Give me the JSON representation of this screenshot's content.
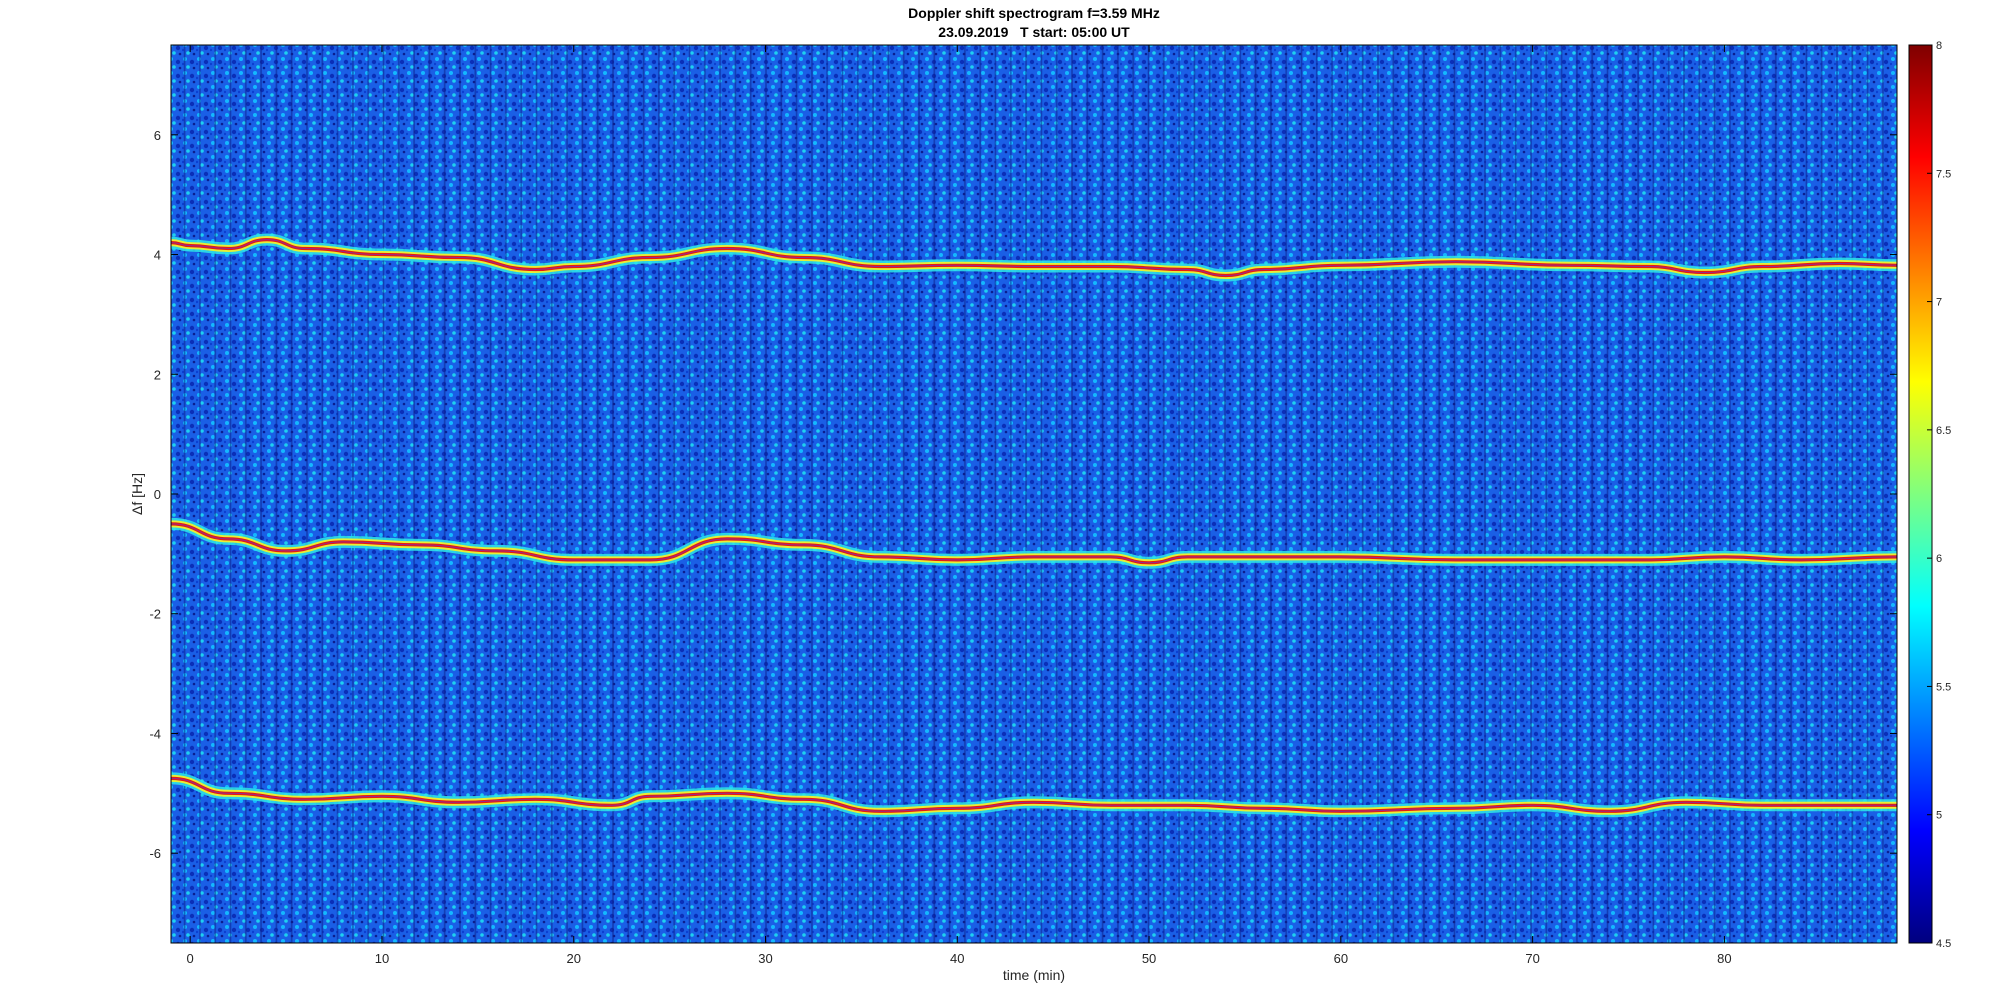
{
  "chart_data": {
    "type": "heatmap",
    "title": "Doppler shift spectrogram f=3.59 MHz",
    "subtitle": "23.09.2019   T start: 05:00 UT",
    "xlabel": "time (min)",
    "ylabel": "Δf [Hz]",
    "xlim": [
      -1,
      89
    ],
    "ylim": [
      -7.5,
      7.5
    ],
    "x_ticks": [
      0,
      10,
      20,
      30,
      40,
      50,
      60,
      70,
      80
    ],
    "y_ticks": [
      -6,
      -4,
      -2,
      0,
      2,
      4,
      6
    ],
    "colorbar": {
      "range": [
        4.5,
        8
      ],
      "ticks": [
        "4.5",
        "5",
        "5.5",
        "6",
        "6.5",
        "7",
        "7.5",
        "8"
      ],
      "colormap": "jet"
    },
    "grid": false,
    "series": [
      {
        "x": [
          -1,
          0,
          2,
          4,
          6,
          10,
          14,
          18,
          20,
          24,
          28,
          32,
          36,
          40,
          44,
          48,
          52,
          54,
          56,
          60,
          66,
          72,
          76,
          79,
          82,
          86,
          89
        ],
        "values": [
          4.2,
          4.15,
          4.1,
          4.25,
          4.1,
          4.0,
          3.95,
          3.75,
          3.8,
          3.95,
          4.1,
          3.95,
          3.8,
          3.82,
          3.8,
          3.8,
          3.75,
          3.65,
          3.75,
          3.82,
          3.88,
          3.82,
          3.8,
          3.7,
          3.8,
          3.85,
          3.82
        ]
      },
      {
        "x": [
          -1,
          2,
          5,
          8,
          12,
          16,
          20,
          24,
          28,
          32,
          36,
          40,
          44,
          48,
          50,
          52,
          56,
          60,
          66,
          72,
          76,
          80,
          84,
          89
        ],
        "values": [
          -0.5,
          -0.75,
          -0.95,
          -0.8,
          -0.85,
          -0.95,
          -1.1,
          -1.1,
          -0.75,
          -0.85,
          -1.05,
          -1.1,
          -1.05,
          -1.05,
          -1.15,
          -1.05,
          -1.05,
          -1.05,
          -1.1,
          -1.1,
          -1.1,
          -1.05,
          -1.1,
          -1.05
        ]
      },
      {
        "x": [
          -1,
          2,
          6,
          10,
          14,
          18,
          22,
          24,
          28,
          32,
          36,
          40,
          44,
          48,
          52,
          56,
          60,
          66,
          70,
          74,
          78,
          82,
          86,
          89
        ],
        "values": [
          -4.75,
          -5.0,
          -5.1,
          -5.05,
          -5.15,
          -5.1,
          -5.2,
          -5.05,
          -5.0,
          -5.1,
          -5.3,
          -5.25,
          -5.15,
          -5.2,
          -5.2,
          -5.25,
          -5.3,
          -5.25,
          -5.2,
          -5.3,
          -5.15,
          -5.2,
          -5.2,
          -5.2
        ]
      }
    ]
  }
}
